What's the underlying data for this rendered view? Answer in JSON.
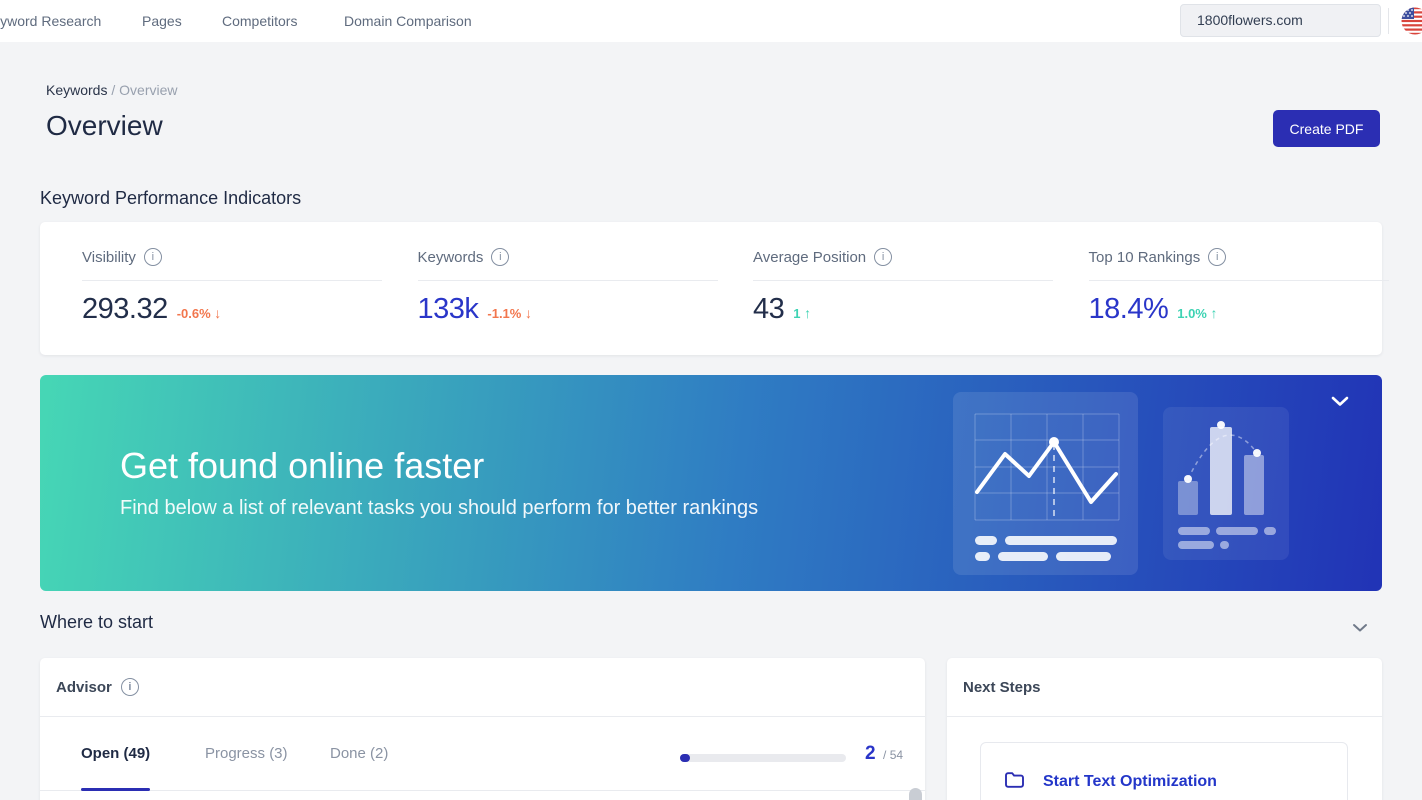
{
  "topnav": {
    "items": [
      "Keyword Research",
      "Pages",
      "Competitors",
      "Domain Comparison"
    ],
    "domain_selector": {
      "value": "1800flowers.com"
    },
    "country_flag": "us"
  },
  "breadcrumb": {
    "section": "Keywords",
    "separator": "/",
    "page": "Overview"
  },
  "header": {
    "title": "Overview",
    "create_pdf_button": "Create PDF"
  },
  "kpi_section": {
    "title": "Keyword Performance Indicators",
    "cards": [
      {
        "label": "Visibility",
        "value": "293.32",
        "delta": "-0.6%",
        "arrow": "↓",
        "value_color": "#222e4a",
        "delta_color": "#f2764d"
      },
      {
        "label": "Keywords",
        "value": "133k",
        "delta": "-1.1%",
        "arrow": "↓",
        "value_color": "#2a36c9",
        "delta_color": "#f2764d"
      },
      {
        "label": "Average Position",
        "value": "43",
        "delta": "1",
        "arrow": "↑",
        "value_color": "#222e4a",
        "delta_color": "#3dd3b3"
      },
      {
        "label": "Top 10 Rankings",
        "value": "18.4%",
        "delta": "1.0%",
        "arrow": "↑",
        "value_color": "#2a36c9",
        "delta_color": "#3dd3b3"
      }
    ]
  },
  "banner": {
    "title": "Get found online faster",
    "subtitle": "Find below a list of relevant tasks you should perform for better rankings",
    "colors": {
      "gradient_start": "#46d7b5",
      "gradient_mid": "#2f7cc3",
      "gradient_end": "#2133b6"
    }
  },
  "where_to_start": {
    "title": "Where to start"
  },
  "advisor": {
    "title": "Advisor",
    "tabs": [
      {
        "label": "Open (49)",
        "active": true
      },
      {
        "label": "Progress (3)",
        "active": false
      },
      {
        "label": "Done (2)",
        "active": false
      }
    ],
    "progress": {
      "completed": "2",
      "total_suffix": "/ 54",
      "percent": 3.7
    }
  },
  "next_steps": {
    "title": "Next Steps",
    "items": [
      {
        "label": "Start Text Optimization",
        "icon": "folder"
      }
    ]
  }
}
